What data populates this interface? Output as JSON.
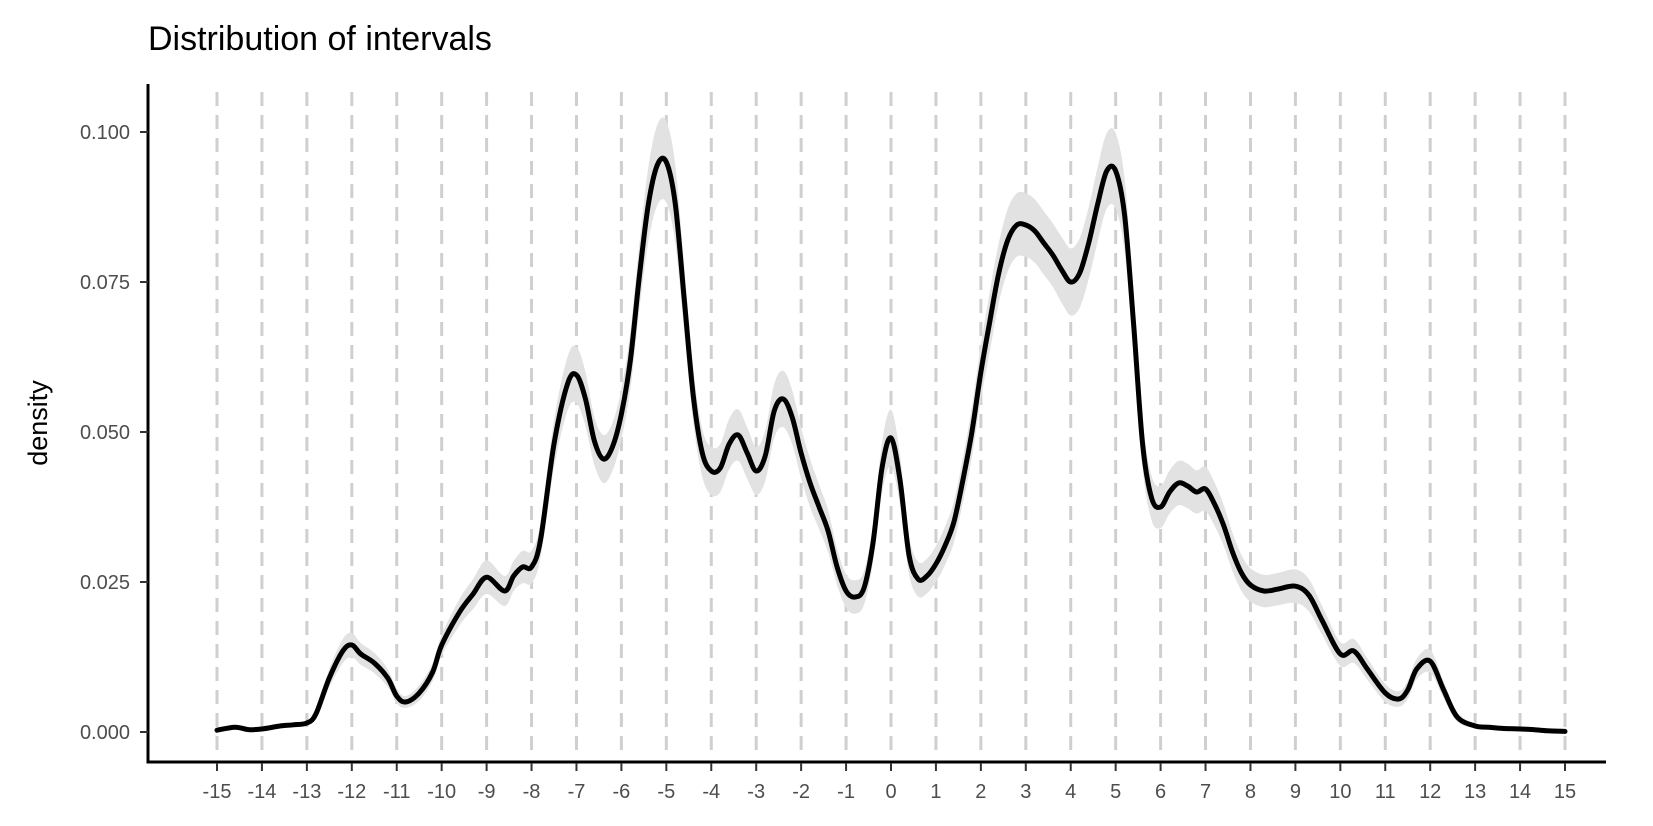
{
  "chart_data": {
    "type": "area",
    "title": "Distribution of intervals",
    "xlabel": "",
    "ylabel": "density",
    "xlim": [
      -15,
      15
    ],
    "ylim": [
      0,
      0.1
    ],
    "x_ticks": [
      -15,
      -14,
      -13,
      -12,
      -11,
      -10,
      -9,
      -8,
      -7,
      -6,
      -5,
      -4,
      -3,
      -2,
      -1,
      0,
      1,
      2,
      3,
      4,
      5,
      6,
      7,
      8,
      9,
      10,
      11,
      12,
      13,
      14,
      15
    ],
    "x_tick_labels": [
      "-15",
      "-14",
      "-13",
      "-12",
      "-11",
      "-10",
      "-9",
      "-8",
      "-7",
      "-6",
      "-5",
      "-4",
      "-3",
      "-2",
      "-1",
      "0",
      "1",
      "2",
      "3",
      "4",
      "5",
      "6",
      "7",
      "8",
      "9",
      "10",
      "11",
      "12",
      "13",
      "14",
      "15"
    ],
    "y_ticks": [
      0,
      0.025,
      0.05,
      0.075,
      0.1
    ],
    "y_tick_labels": [
      "0.000",
      "0.025",
      "0.050",
      "0.075",
      "0.100"
    ],
    "grid": "vertical dashed at integer x",
    "colors": {
      "line": "#000000",
      "band": "#e2e2e2",
      "grid": "#cfcfcf"
    },
    "series": [
      {
        "x": [
          -15,
          -14.6,
          -14.3,
          -14,
          -13.6,
          -13.3,
          -13,
          -12.8,
          -12.5,
          -12.2,
          -12,
          -11.8,
          -11.5,
          -11.2,
          -11,
          -10.8,
          -10.5,
          -10.2,
          -10,
          -9.6,
          -9.3,
          -9,
          -8.6,
          -8.4,
          -8.2,
          -8,
          -7.8,
          -7.5,
          -7.2,
          -7,
          -6.8,
          -6.6,
          -6.4,
          -6.2,
          -6,
          -5.8,
          -5.6,
          -5.4,
          -5.2,
          -5,
          -4.8,
          -4.6,
          -4.4,
          -4.2,
          -4,
          -3.8,
          -3.6,
          -3.4,
          -3.2,
          -3,
          -2.8,
          -2.6,
          -2.4,
          -2.2,
          -2,
          -1.8,
          -1.6,
          -1.4,
          -1.2,
          -1,
          -0.8,
          -0.6,
          -0.4,
          -0.2,
          0,
          0.2,
          0.4,
          0.6,
          0.8,
          1,
          1.2,
          1.4,
          1.6,
          1.8,
          2,
          2.2,
          2.4,
          2.6,
          2.8,
          3,
          3.2,
          3.4,
          3.6,
          3.8,
          4,
          4.2,
          4.4,
          4.6,
          4.8,
          5,
          5.2,
          5.4,
          5.6,
          5.8,
          6,
          6.2,
          6.4,
          6.6,
          6.8,
          7,
          7.2,
          7.4,
          7.6,
          7.8,
          8,
          8.3,
          8.6,
          9,
          9.3,
          9.6,
          10,
          10.3,
          10.6,
          11,
          11.3,
          11.5,
          11.7,
          12,
          12.3,
          12.6,
          13,
          13.3,
          13.6,
          14,
          14.3,
          14.6,
          15
        ],
        "y": [
          0.0003,
          0.0008,
          0.0004,
          0.0005,
          0.001,
          0.0012,
          0.0015,
          0.003,
          0.009,
          0.0135,
          0.0145,
          0.013,
          0.0115,
          0.009,
          0.006,
          0.005,
          0.0065,
          0.01,
          0.0145,
          0.02,
          0.023,
          0.0258,
          0.0235,
          0.026,
          0.0275,
          0.0275,
          0.032,
          0.048,
          0.058,
          0.0595,
          0.0555,
          0.0485,
          0.0455,
          0.0475,
          0.053,
          0.062,
          0.076,
          0.088,
          0.0945,
          0.095,
          0.088,
          0.072,
          0.056,
          0.0465,
          0.0435,
          0.044,
          0.048,
          0.0495,
          0.0465,
          0.0435,
          0.046,
          0.0535,
          0.0555,
          0.0525,
          0.0465,
          0.0415,
          0.0375,
          0.0335,
          0.0275,
          0.0235,
          0.0225,
          0.024,
          0.0315,
          0.044,
          0.049,
          0.042,
          0.0295,
          0.0255,
          0.026,
          0.028,
          0.031,
          0.035,
          0.042,
          0.05,
          0.06,
          0.0685,
          0.0765,
          0.082,
          0.0845,
          0.0845,
          0.0835,
          0.0815,
          0.0795,
          0.077,
          0.075,
          0.0765,
          0.0815,
          0.088,
          0.0935,
          0.0935,
          0.086,
          0.068,
          0.048,
          0.039,
          0.0375,
          0.04,
          0.0415,
          0.041,
          0.04,
          0.0405,
          0.038,
          0.0345,
          0.03,
          0.0265,
          0.0245,
          0.0235,
          0.0238,
          0.0243,
          0.0228,
          0.0185,
          0.013,
          0.0135,
          0.0105,
          0.0065,
          0.0055,
          0.007,
          0.0105,
          0.0118,
          0.007,
          0.0025,
          0.001,
          0.0008,
          0.0006,
          0.0005,
          0.0004,
          0.0002,
          0.0001
        ],
        "lower": [
          0.0001,
          0.0005,
          0.0002,
          0.0003,
          0.0007,
          0.0009,
          0.0012,
          0.0025,
          0.0075,
          0.0115,
          0.0125,
          0.0112,
          0.0098,
          0.0075,
          0.0048,
          0.004,
          0.0052,
          0.0085,
          0.0128,
          0.0178,
          0.0205,
          0.023,
          0.021,
          0.0235,
          0.0248,
          0.0248,
          0.029,
          0.044,
          0.0535,
          0.0548,
          0.051,
          0.0445,
          0.0415,
          0.0435,
          0.0488,
          0.0572,
          0.0705,
          0.0818,
          0.0878,
          0.0882,
          0.0815,
          0.0665,
          0.0515,
          0.0425,
          0.0395,
          0.04,
          0.0438,
          0.0452,
          0.0422,
          0.0395,
          0.0418,
          0.049,
          0.0508,
          0.048,
          0.0423,
          0.0375,
          0.0338,
          0.03,
          0.0245,
          0.0207,
          0.0197,
          0.0212,
          0.0283,
          0.0398,
          0.0443,
          0.0378,
          0.0263,
          0.0226,
          0.0231,
          0.025,
          0.0278,
          0.0316,
          0.0383,
          0.0458,
          0.0555,
          0.0635,
          0.0715,
          0.0768,
          0.0792,
          0.0792,
          0.0782,
          0.0762,
          0.0742,
          0.0715,
          0.0694,
          0.0707,
          0.0755,
          0.0818,
          0.0872,
          0.0872,
          0.0799,
          0.0628,
          0.0438,
          0.0353,
          0.034,
          0.0364,
          0.0378,
          0.0373,
          0.0364,
          0.0368,
          0.0344,
          0.0311,
          0.0268,
          0.0235,
          0.0217,
          0.0208,
          0.0211,
          0.0215,
          0.0201,
          0.0161,
          0.011,
          0.0115,
          0.0087,
          0.005,
          0.0042,
          0.0055,
          0.0088,
          0.0099,
          0.0056,
          0.0017,
          0.0006,
          0.0005,
          0.0003,
          0.0003,
          0.0002,
          0.0001,
          0.0
        ],
        "upper": [
          0.0005,
          0.0011,
          0.0006,
          0.0007,
          0.0013,
          0.0015,
          0.0018,
          0.0035,
          0.0105,
          0.0155,
          0.0165,
          0.0148,
          0.0132,
          0.0105,
          0.0072,
          0.006,
          0.0078,
          0.0115,
          0.0162,
          0.0222,
          0.0255,
          0.0286,
          0.026,
          0.0285,
          0.0302,
          0.0302,
          0.035,
          0.052,
          0.0625,
          0.0642,
          0.06,
          0.0525,
          0.0495,
          0.0515,
          0.0572,
          0.0668,
          0.0815,
          0.0942,
          0.1012,
          0.1018,
          0.0945,
          0.0775,
          0.0605,
          0.0505,
          0.0475,
          0.048,
          0.0522,
          0.0538,
          0.0508,
          0.0475,
          0.0502,
          0.058,
          0.0602,
          0.057,
          0.0507,
          0.0455,
          0.0412,
          0.037,
          0.0305,
          0.0263,
          0.0253,
          0.0268,
          0.0347,
          0.0482,
          0.0537,
          0.0462,
          0.0327,
          0.0284,
          0.0289,
          0.031,
          0.0342,
          0.0384,
          0.0457,
          0.0542,
          0.0645,
          0.0735,
          0.0815,
          0.0872,
          0.0898,
          0.0898,
          0.0888,
          0.0868,
          0.0848,
          0.0825,
          0.0806,
          0.0823,
          0.0875,
          0.0942,
          0.0998,
          0.0998,
          0.0921,
          0.0732,
          0.0522,
          0.0427,
          0.041,
          0.0436,
          0.0452,
          0.0447,
          0.0436,
          0.0442,
          0.0416,
          0.0379,
          0.0332,
          0.0295,
          0.0273,
          0.0262,
          0.0265,
          0.0271,
          0.0255,
          0.0209,
          0.015,
          0.0155,
          0.0123,
          0.008,
          0.0068,
          0.0085,
          0.0122,
          0.0137,
          0.0084,
          0.0033,
          0.0014,
          0.0011,
          0.0009,
          0.0007,
          0.0006,
          0.0003,
          0.0002
        ]
      }
    ]
  }
}
